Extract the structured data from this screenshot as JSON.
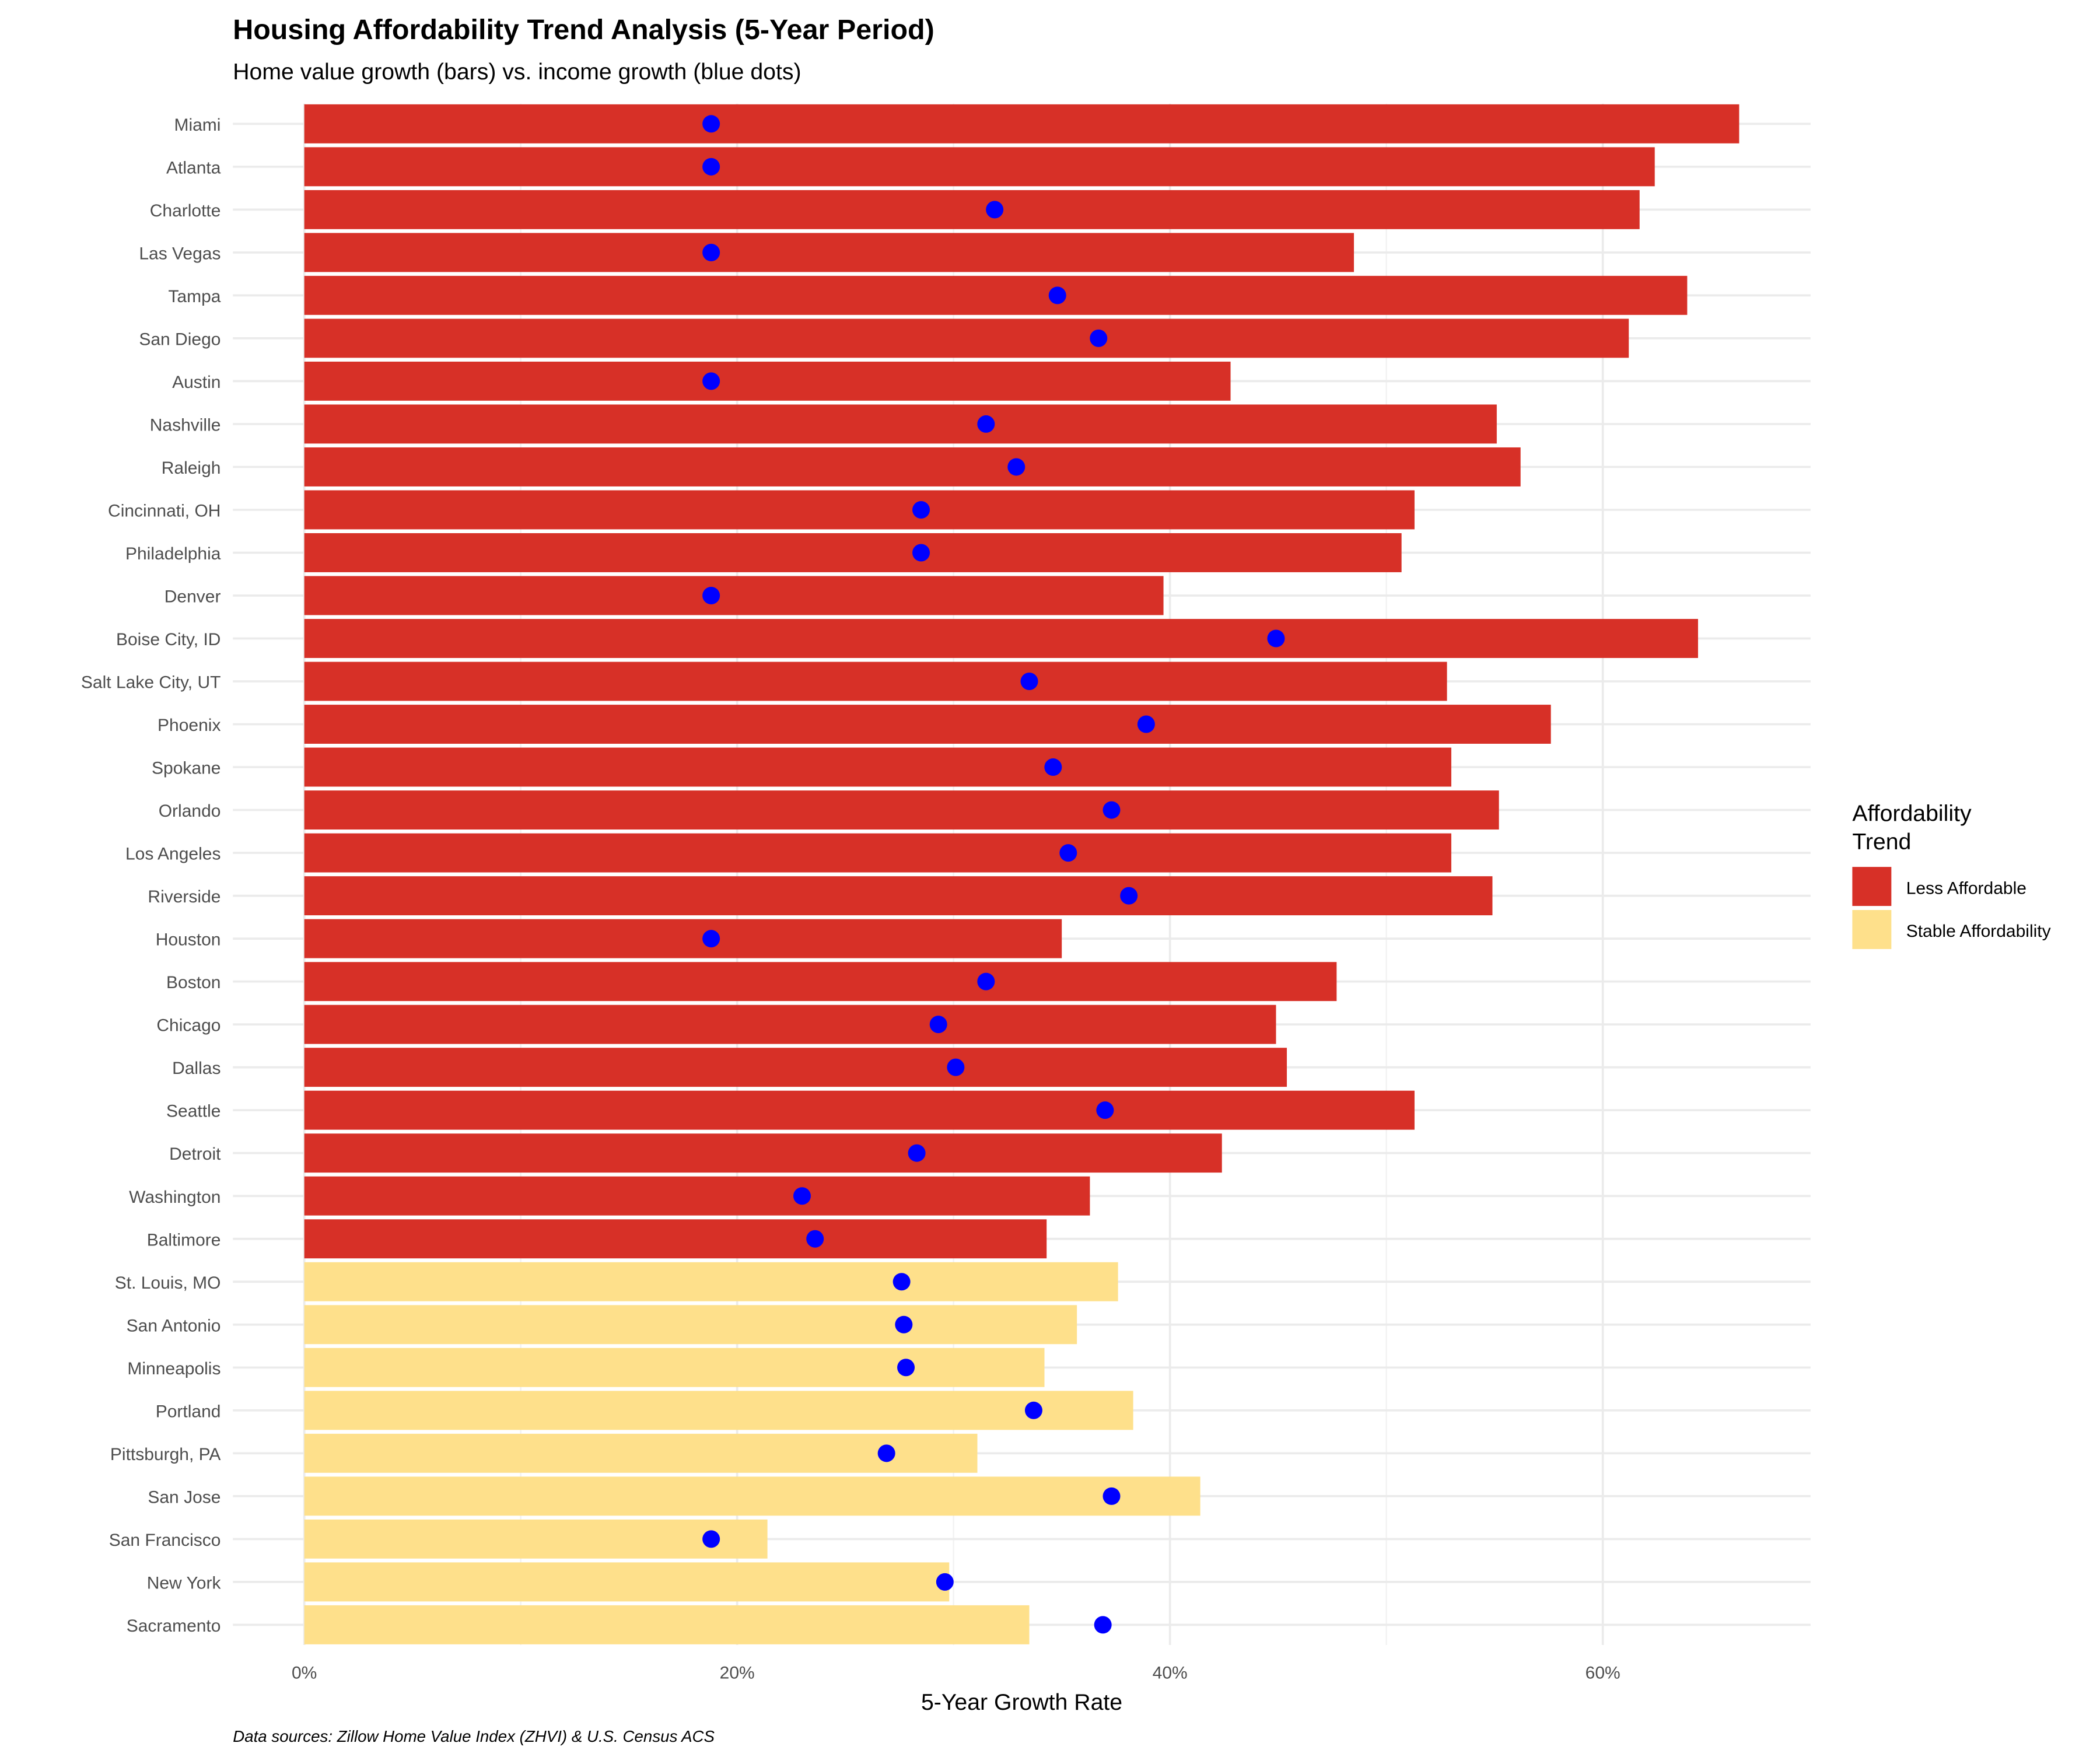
{
  "chart_data": {
    "type": "bar",
    "title": "Housing Affordability Trend Analysis (5-Year Period)",
    "subtitle": "Home value growth (bars) vs. income growth (blue dots)",
    "xlabel": "5-Year Growth Rate",
    "ylabel": "",
    "caption": "Data sources: Zillow Home Value Index (ZHVI) & U.S. Census ACS",
    "xlim": [
      -3.3,
      69.6
    ],
    "x_ticks": [
      0,
      20,
      40,
      60
    ],
    "x_tick_labels": [
      "0%",
      "20%",
      "40%",
      "60%"
    ],
    "grid": true,
    "legend": {
      "title": "Affordability\nTrend",
      "title_lines": [
        "Affordability",
        "Trend"
      ],
      "position": "right",
      "entries": [
        {
          "label": "Less Affordable",
          "color": "#D73027"
        },
        {
          "label": "Stable Affordability",
          "color": "#FEE08B"
        }
      ]
    },
    "dot_color": "#0000FF",
    "categories": [
      "Miami",
      "Atlanta",
      "Charlotte",
      "Las Vegas",
      "Tampa",
      "San Diego",
      "Austin",
      "Nashville",
      "Raleigh",
      "Cincinnati, OH",
      "Philadelphia",
      "Denver",
      "Boise City, ID",
      "Salt Lake City, UT",
      "Phoenix",
      "Spokane",
      "Orlando",
      "Los Angeles",
      "Riverside",
      "Houston",
      "Boston",
      "Chicago",
      "Dallas",
      "Seattle",
      "Detroit",
      "Washington",
      "Baltimore",
      "St. Louis, MO",
      "San Antonio",
      "Minneapolis",
      "Portland",
      "Pittsburgh, PA",
      "San Jose",
      "San Francisco",
      "New York",
      "Sacramento"
    ],
    "series": [
      {
        "name": "Home value growth (%)",
        "values": [
          66.3,
          62.4,
          61.7,
          48.5,
          63.9,
          61.2,
          42.8,
          55.1,
          56.2,
          51.3,
          50.7,
          39.7,
          64.4,
          52.8,
          57.6,
          53.0,
          55.2,
          53.0,
          54.9,
          35.0,
          47.7,
          44.9,
          45.4,
          51.3,
          42.4,
          36.3,
          34.3,
          37.6,
          35.7,
          34.2,
          38.3,
          31.1,
          41.4,
          21.4,
          29.8,
          33.5
        ]
      },
      {
        "name": "Income growth (%)",
        "values": [
          18.8,
          18.8,
          31.9,
          18.8,
          34.8,
          36.7,
          18.8,
          31.5,
          32.9,
          28.5,
          28.5,
          18.8,
          44.9,
          33.5,
          38.9,
          34.6,
          37.3,
          35.3,
          38.1,
          18.8,
          31.5,
          29.3,
          30.1,
          37.0,
          28.3,
          23.0,
          23.6,
          27.6,
          27.7,
          27.8,
          33.7,
          26.9,
          37.3,
          18.8,
          29.6,
          36.9
        ]
      }
    ],
    "trend": [
      "Less Affordable",
      "Less Affordable",
      "Less Affordable",
      "Less Affordable",
      "Less Affordable",
      "Less Affordable",
      "Less Affordable",
      "Less Affordable",
      "Less Affordable",
      "Less Affordable",
      "Less Affordable",
      "Less Affordable",
      "Less Affordable",
      "Less Affordable",
      "Less Affordable",
      "Less Affordable",
      "Less Affordable",
      "Less Affordable",
      "Less Affordable",
      "Less Affordable",
      "Less Affordable",
      "Less Affordable",
      "Less Affordable",
      "Less Affordable",
      "Less Affordable",
      "Less Affordable",
      "Less Affordable",
      "Stable Affordability",
      "Stable Affordability",
      "Stable Affordability",
      "Stable Affordability",
      "Stable Affordability",
      "Stable Affordability",
      "Stable Affordability",
      "Stable Affordability",
      "Stable Affordability"
    ]
  }
}
